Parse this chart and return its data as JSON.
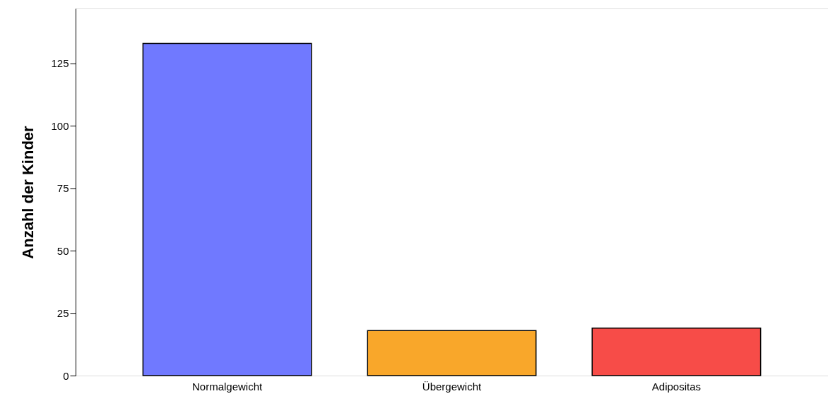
{
  "chart_data": {
    "type": "bar",
    "ylabel": "Anzahl der Kinder",
    "categories": [
      "Normalgewicht",
      "Übergewicht",
      "Adipositas"
    ],
    "values": [
      133,
      18,
      19
    ],
    "colors": [
      "#7079ff",
      "#f9a72a",
      "#f74c48"
    ],
    "ylim": [
      0,
      147
    ],
    "yticks": [
      0,
      25,
      50,
      75,
      100,
      125
    ],
    "grid": false
  }
}
